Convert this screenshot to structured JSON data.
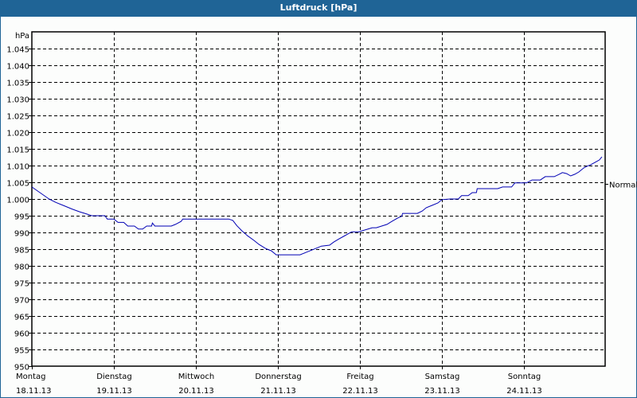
{
  "title": "Luftdruck [hPa]",
  "yaxis_unit": "hPa",
  "normal_label": "Normal",
  "colors": {
    "titlebar": "#1f6496",
    "line": "#0000b4",
    "grid": "#000000",
    "background": "#fcfdfc"
  },
  "chart_data": {
    "type": "line",
    "title": "Luftdruck [hPa]",
    "xlabel": "",
    "ylabel": "hPa",
    "ylim": [
      950,
      1050
    ],
    "yticks": [
      950,
      955,
      960,
      965,
      970,
      975,
      980,
      985,
      990,
      995,
      1000,
      1005,
      1010,
      1015,
      1020,
      1025,
      1030,
      1035,
      1040,
      1045
    ],
    "ytick_labels": [
      "950",
      "955",
      "960",
      "965",
      "970",
      "975",
      "980",
      "985",
      "990",
      "995",
      "1.000",
      "1.005",
      "1.010",
      "1.015",
      "1.020",
      "1.025",
      "1.030",
      "1.035",
      "1.040",
      "1.045"
    ],
    "categories": [
      {
        "day": "Montag",
        "date": "18.11.13"
      },
      {
        "day": "Dienstag",
        "date": "19.11.13"
      },
      {
        "day": "Mittwoch",
        "date": "20.11.13"
      },
      {
        "day": "Donnerstag",
        "date": "21.11.13"
      },
      {
        "day": "Freitag",
        "date": "22.11.13"
      },
      {
        "day": "Samstag",
        "date": "23.11.13"
      },
      {
        "day": "Sonntag",
        "date": "24.11.13"
      }
    ],
    "grid": true,
    "reference_line": {
      "label": "Normal",
      "value": 1005
    },
    "series": [
      {
        "name": "Luftdruck",
        "x_days": [
          0,
          0.21,
          0.29,
          0.39,
          0.49,
          0.58,
          0.67,
          0.73,
          0.89,
          0.92,
          1.0,
          1.05,
          1.12,
          1.17,
          1.25,
          1.3,
          1.35,
          1.4,
          1.46,
          1.47,
          1.5,
          1.7,
          1.75,
          1.82,
          1.84,
          2.4,
          2.45,
          2.5,
          2.56,
          2.63,
          2.71,
          2.77,
          2.85,
          2.92,
          2.98,
          3.06,
          3.27,
          3.34,
          3.46,
          3.53,
          3.63,
          3.68,
          3.74,
          3.8,
          3.9,
          3.99,
          4.03,
          4.15,
          4.2,
          4.33,
          4.39,
          4.46,
          4.51,
          4.52,
          4.7,
          4.76,
          4.81,
          4.88,
          4.95,
          5.0,
          5.1,
          5.2,
          5.24,
          5.32,
          5.37,
          5.42,
          5.43,
          5.68,
          5.74,
          5.85,
          5.89,
          6.03,
          6.1,
          6.2,
          6.26,
          6.37,
          6.43,
          6.47,
          6.52,
          6.57,
          6.62,
          6.67,
          6.73,
          6.77,
          6.81,
          6.87,
          6.92,
          6.95
        ],
        "values": [
          1003.6,
          1000,
          999,
          998,
          997,
          996.2,
          995.5,
          995,
          995,
          994,
          994,
          993,
          993,
          991.9,
          991.9,
          991,
          991,
          991.9,
          991.9,
          992.8,
          991.9,
          991.9,
          992.4,
          993.3,
          994,
          994,
          993.6,
          992,
          990.5,
          989,
          987.6,
          986.4,
          985.2,
          984.5,
          983.3,
          983.3,
          983.3,
          984,
          985.2,
          985.9,
          986.2,
          987.1,
          988,
          988.8,
          990.2,
          990.2,
          990.5,
          991.4,
          991.4,
          992.4,
          993.3,
          994.3,
          994.8,
          995.7,
          995.7,
          996.4,
          997.4,
          998.1,
          998.8,
          999.8,
          1000,
          1000,
          1001,
          1001,
          1001.9,
          1001.9,
          1003.1,
          1003.1,
          1003.6,
          1003.6,
          1004.8,
          1004.8,
          1005.7,
          1005.7,
          1006.7,
          1006.7,
          1007.4,
          1007.9,
          1007.6,
          1006.9,
          1007.4,
          1008.1,
          1009.3,
          1009.8,
          1010.2,
          1011,
          1011.7,
          1012.6
        ]
      }
    ]
  }
}
